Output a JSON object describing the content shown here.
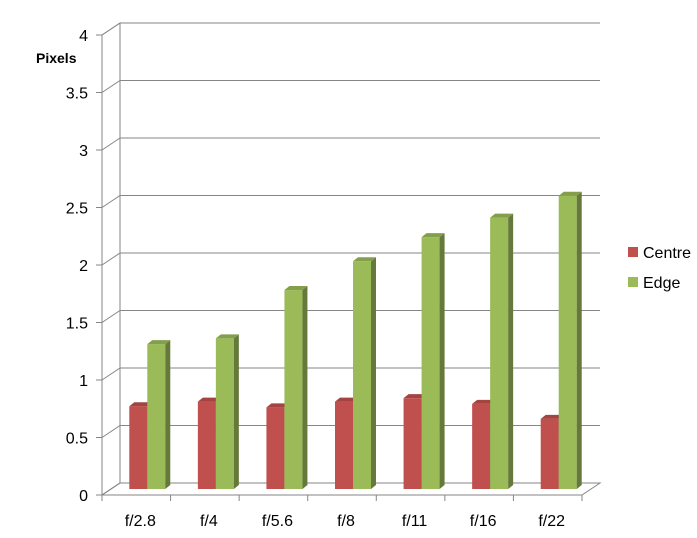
{
  "chart_data": {
    "type": "bar",
    "title": "",
    "xlabel": "",
    "ylabel": "Pixels",
    "categories": [
      "f/2.8",
      "f/4",
      "f/5.6",
      "f/8",
      "f/11",
      "f/16",
      "f/22"
    ],
    "series": [
      {
        "name": "Centre",
        "color": "#c0504d",
        "values": [
          0.72,
          0.76,
          0.71,
          0.76,
          0.79,
          0.74,
          0.61
        ]
      },
      {
        "name": "Edge",
        "color": "#9bbb59",
        "values": [
          1.26,
          1.31,
          1.73,
          1.98,
          2.19,
          2.36,
          2.55
        ]
      }
    ],
    "ylim": [
      0,
      4
    ],
    "yticks": [
      "0",
      "0.5",
      "1",
      "1.5",
      "2",
      "2.5",
      "3",
      "3.5",
      "4"
    ],
    "grid": true,
    "legend_position": "right",
    "style": "3d-clustered-column"
  }
}
